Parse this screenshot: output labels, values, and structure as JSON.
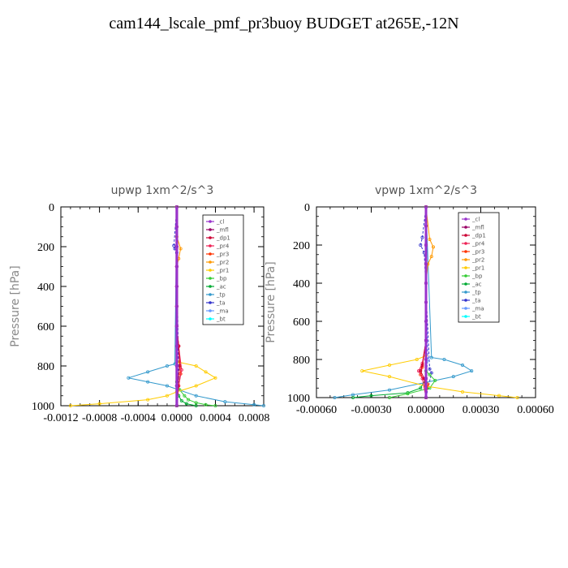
{
  "title": "cam144_lscale_pmf_pr3buoy  BUDGET at265E,-12N",
  "legend_entries": [
    "_cl",
    "_mfl",
    "_dp1",
    "_pr4",
    "_pr3",
    "_pr2",
    "_pr1",
    "_bp",
    "_ac",
    "_tp",
    "_ta",
    "_ma",
    "_bt"
  ],
  "colors": {
    "_cl": "#9933cc",
    "_mfl": "#990066",
    "_dp1": "#cc0033",
    "_pr4": "#ee2255",
    "_pr3": "#ff3300",
    "_pr2": "#ff9900",
    "_pr1": "#ffcc00",
    "_bp": "#33cc33",
    "_ac": "#00aa33",
    "_tp": "#3399cc",
    "_ta": "#3333cc",
    "_ma": "#6699ff",
    "_bt": "#00ffff"
  },
  "chart_data": [
    {
      "type": "line",
      "title": "upwp   1xm^2/s^3",
      "ylabel": "Pressure [hPa]",
      "xlim": [
        -0.0012,
        0.0009
      ],
      "ylim": [
        1000,
        0
      ],
      "xticks": [
        -0.0012,
        -0.0008,
        -0.0004,
        0.0,
        0.0004,
        0.0008
      ],
      "xtick_labels": [
        "-0.0012",
        "-0.0008",
        "-0.0004",
        "0.0000",
        "0.0004",
        "0.0008"
      ],
      "yticks": [
        0,
        200,
        400,
        600,
        800,
        1000
      ],
      "series": [
        {
          "name": "_cl",
          "x": [
            0,
            0,
            0,
            0,
            0,
            0,
            0,
            0,
            0,
            0,
            0
          ],
          "y": [
            0,
            100,
            200,
            300,
            400,
            500,
            600,
            700,
            800,
            900,
            1000
          ]
        },
        {
          "name": "_mfl",
          "x": [
            0,
            0,
            0,
            0,
            0,
            0,
            0,
            0,
            0,
            0,
            0
          ],
          "y": [
            0,
            100,
            200,
            300,
            400,
            500,
            600,
            700,
            800,
            900,
            1000
          ]
        },
        {
          "name": "_dp1",
          "x": [
            0,
            0,
            0,
            0,
            0,
            0,
            0,
            2e-05,
            3e-05,
            1e-05,
            0
          ],
          "y": [
            0,
            100,
            200,
            300,
            400,
            500,
            600,
            700,
            800,
            900,
            1000
          ]
        },
        {
          "name": "_pr4",
          "x": [
            0,
            0,
            0,
            0,
            0,
            0,
            0,
            2e-05,
            5e-05,
            2e-05,
            0
          ],
          "y": [
            0,
            100,
            200,
            300,
            400,
            500,
            600,
            700,
            820,
            900,
            1000
          ]
        },
        {
          "name": "_pr3",
          "x": [
            0,
            0,
            0,
            0,
            0,
            0,
            0,
            2e-05,
            4e-05,
            2e-05,
            0
          ],
          "y": [
            0,
            100,
            200,
            300,
            400,
            500,
            600,
            700,
            840,
            900,
            1000
          ]
        },
        {
          "name": "_pr2",
          "x": [
            0,
            0,
            4e-05,
            2e-05,
            0,
            0,
            0,
            0,
            0,
            0
          ],
          "y": [
            0,
            150,
            210,
            260,
            300,
            500,
            700,
            800,
            900,
            1000
          ]
        },
        {
          "name": "_pr1",
          "x": [
            0,
            1e-05,
            0.0002,
            0.0003,
            0.0004,
            0.0002,
            0,
            -0.0001,
            -0.0003,
            -0.0008,
            -0.0011
          ],
          "y": [
            0,
            780,
            800,
            830,
            860,
            900,
            930,
            950,
            970,
            990,
            1000
          ]
        },
        {
          "name": "_bp",
          "x": [
            0,
            0,
            3e-05,
            8e-05,
            0.00012,
            0.0002,
            0.0003,
            0.0004
          ],
          "y": [
            0,
            880,
            920,
            950,
            970,
            985,
            995,
            1000
          ]
        },
        {
          "name": "_ac",
          "x": [
            0,
            0,
            2e-05,
            5e-05,
            0.0001,
            0.0002
          ],
          "y": [
            0,
            900,
            950,
            975,
            990,
            1000
          ]
        },
        {
          "name": "_tp",
          "x": [
            0,
            -2e-05,
            -0.0001,
            -0.0003,
            -0.0005,
            -0.0003,
            -0.0001,
            0.0002,
            0.0005,
            0.0008,
            0.0009
          ],
          "y": [
            0,
            790,
            800,
            830,
            860,
            880,
            900,
            950,
            980,
            995,
            1000
          ]
        },
        {
          "name": "_ta",
          "x": [
            0,
            -3e-05,
            -2e-05,
            0,
            2e-05,
            0
          ],
          "y": [
            0,
            195,
            210,
            230,
            860,
            1000
          ]
        },
        {
          "name": "_ma",
          "x": [
            0,
            0,
            0,
            1e-05,
            0,
            0
          ],
          "y": [
            0,
            200,
            400,
            800,
            900,
            1000
          ]
        },
        {
          "name": "_bt",
          "x": [
            0,
            0,
            0,
            0,
            0
          ],
          "y": [
            0,
            300,
            600,
            900,
            1000
          ]
        }
      ]
    },
    {
      "type": "line",
      "title": "vpwp   1xm^2/s^3",
      "ylabel": "Pressure [hPa]",
      "xlim": [
        -0.0006,
        0.0006
      ],
      "ylim": [
        1000,
        0
      ],
      "xticks": [
        -0.0006,
        -0.0003,
        0.0,
        0.0003,
        0.0006
      ],
      "xtick_labels": [
        "-0.00060",
        "-0.00030",
        "0.00000",
        "0.00030",
        "0.00060"
      ],
      "yticks": [
        0,
        200,
        400,
        600,
        800,
        1000
      ],
      "series": [
        {
          "name": "_cl",
          "x": [
            0,
            0,
            0,
            0,
            0,
            0,
            0,
            0,
            0,
            0,
            0
          ],
          "y": [
            0,
            100,
            200,
            300,
            400,
            500,
            600,
            700,
            800,
            900,
            1000
          ]
        },
        {
          "name": "_mfl",
          "x": [
            0,
            0,
            0,
            0,
            0,
            0,
            0,
            0,
            0,
            0,
            0
          ],
          "y": [
            0,
            100,
            200,
            300,
            400,
            500,
            600,
            700,
            800,
            900,
            1000
          ]
        },
        {
          "name": "_dp1",
          "x": [
            0,
            0,
            0,
            0,
            0,
            0,
            -2e-05,
            -3e-05,
            -1e-05,
            0
          ],
          "y": [
            0,
            100,
            200,
            300,
            400,
            700,
            830,
            860,
            900,
            1000
          ]
        },
        {
          "name": "_pr4",
          "x": [
            0,
            0,
            0,
            0,
            0,
            -2e-05,
            -4e-05,
            -2e-05,
            0
          ],
          "y": [
            0,
            100,
            200,
            400,
            700,
            820,
            860,
            900,
            1000
          ]
        },
        {
          "name": "_pr3",
          "x": [
            0,
            0,
            0,
            0,
            -2e-05,
            -3e-05,
            1e-05,
            0
          ],
          "y": [
            0,
            200,
            400,
            700,
            840,
            880,
            930,
            1000
          ]
        },
        {
          "name": "_pr2",
          "x": [
            0,
            2e-05,
            4e-05,
            3e-05,
            1e-05,
            0,
            0
          ],
          "y": [
            0,
            170,
            210,
            260,
            300,
            400,
            1000
          ]
        },
        {
          "name": "_pr1",
          "x": [
            0,
            0,
            -5e-05,
            -0.0002,
            -0.00035,
            -0.0002,
            0,
            0.0002,
            0.0004,
            0.0005
          ],
          "y": [
            0,
            780,
            800,
            830,
            860,
            890,
            940,
            970,
            990,
            1000
          ]
        },
        {
          "name": "_bp",
          "x": [
            0,
            0,
            2e-05,
            5e-05,
            2e-05,
            -0.0001,
            -0.0002
          ],
          "y": [
            0,
            860,
            880,
            910,
            950,
            980,
            1000
          ]
        },
        {
          "name": "_ac",
          "x": [
            0,
            0,
            -3e-05,
            -0.0001,
            -0.0003,
            -0.0004
          ],
          "y": [
            0,
            900,
            950,
            975,
            990,
            1000
          ]
        },
        {
          "name": "_tp",
          "x": [
            0,
            3e-05,
            0.0001,
            0.0002,
            0.00025,
            0.00015,
            0,
            -0.0002,
            -0.0004,
            -0.0005
          ],
          "y": [
            0,
            790,
            800,
            830,
            860,
            890,
            920,
            960,
            985,
            1000
          ]
        },
        {
          "name": "_ta",
          "x": [
            0,
            -2e-05,
            -3e-05,
            -1e-05,
            2e-05,
            3e-05,
            0
          ],
          "y": [
            0,
            160,
            200,
            240,
            850,
            870,
            1000
          ]
        },
        {
          "name": "_ma",
          "x": [
            0,
            0,
            0,
            1e-05,
            0,
            0
          ],
          "y": [
            0,
            200,
            400,
            800,
            900,
            1000
          ]
        },
        {
          "name": "_bt",
          "x": [
            0,
            0,
            0,
            0,
            0
          ],
          "y": [
            0,
            300,
            600,
            900,
            1000
          ]
        }
      ]
    }
  ]
}
